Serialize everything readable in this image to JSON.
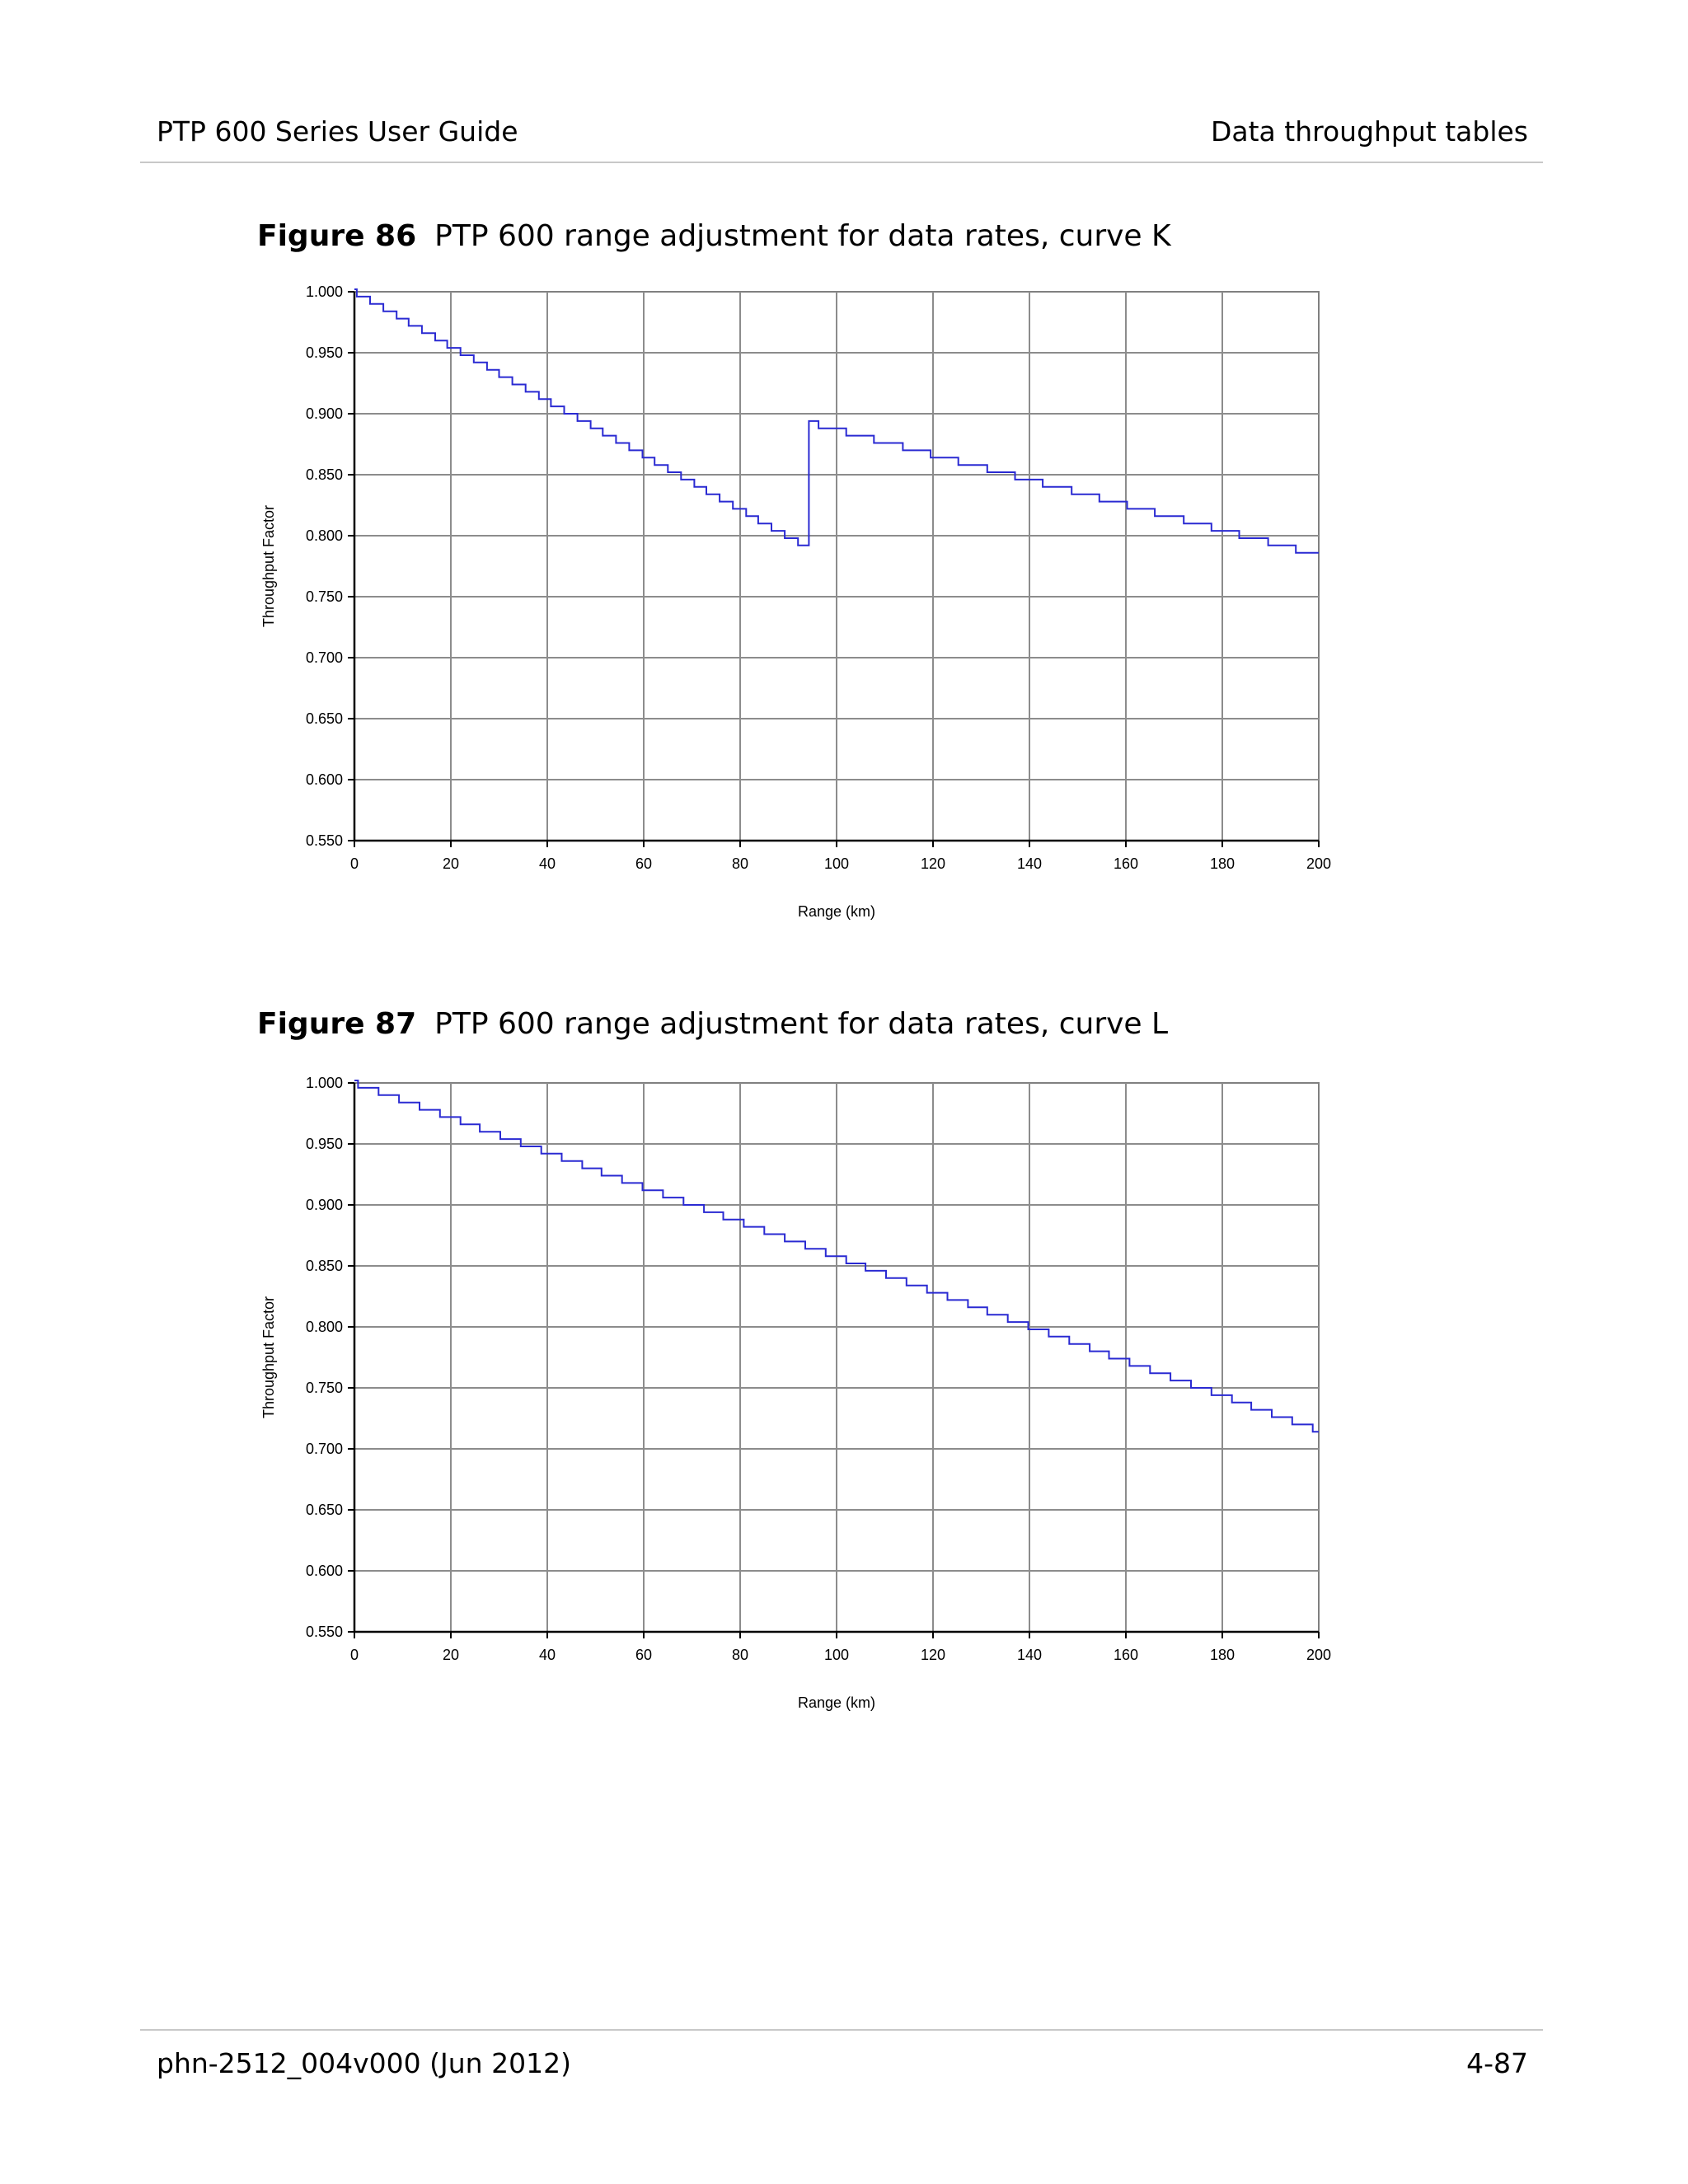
{
  "header": {
    "left": "PTP 600 Series User Guide",
    "right": "Data throughput tables"
  },
  "footer": {
    "left": "phn-2512_004v000 (Jun 2012)",
    "right": "4-87"
  },
  "figures": [
    {
      "number": "Figure 86",
      "caption": "PTP 600 range adjustment for data rates, curve K"
    },
    {
      "number": "Figure 87",
      "caption": "PTP 600 range adjustment for data rates, curve L"
    }
  ],
  "chart_data": [
    {
      "type": "line",
      "title": "",
      "xlabel": "Range (km)",
      "ylabel": "Throughput Factor",
      "xlim": [
        0,
        200
      ],
      "ylim": [
        0.55,
        1.0
      ],
      "xticks": [
        "0",
        "20",
        "40",
        "60",
        "80",
        "100",
        "120",
        "140",
        "160",
        "180",
        "200"
      ],
      "yticks": [
        "1.000",
        "0.950",
        "0.900",
        "0.850",
        "0.800",
        "0.750",
        "0.700",
        "0.650",
        "0.600",
        "0.550"
      ],
      "grid": true,
      "line_color": "#2a2ad2",
      "series": [
        {
          "x": [
            0,
            94,
            94.1,
            200
          ],
          "y": [
            1.0,
            0.79,
            0.893,
            0.784
          ]
        }
      ]
    },
    {
      "type": "line",
      "title": "",
      "xlabel": "Range (km)",
      "ylabel": "Throughput Factor",
      "xlim": [
        0,
        200
      ],
      "ylim": [
        0.55,
        1.0
      ],
      "xticks": [
        "0",
        "20",
        "40",
        "60",
        "80",
        "100",
        "120",
        "140",
        "160",
        "180",
        "200"
      ],
      "yticks": [
        "1.000",
        "0.950",
        "0.900",
        "0.850",
        "0.800",
        "0.750",
        "0.700",
        "0.650",
        "0.600",
        "0.550"
      ],
      "grid": true,
      "line_color": "#2a2ad2",
      "series": [
        {
          "x": [
            0,
            200
          ],
          "y": [
            1.0,
            0.715
          ]
        }
      ]
    }
  ]
}
